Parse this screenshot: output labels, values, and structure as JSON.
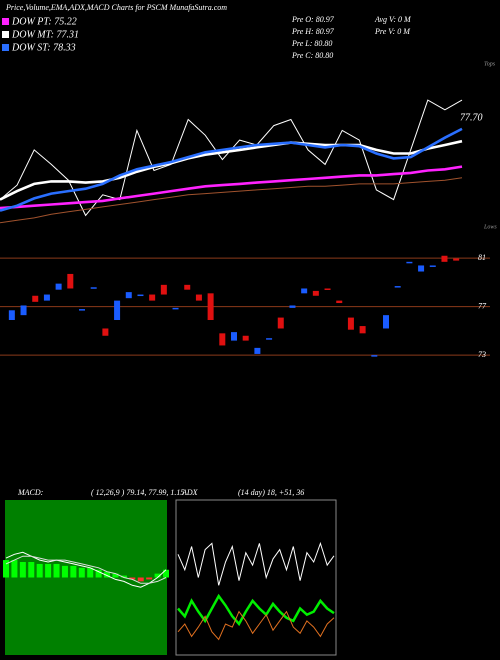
{
  "title": "Price,Volume,EMA,ADX,MACD Charts for PSCM MunafaSutra.com",
  "chart_data": [
    {
      "type": "line",
      "ylim": [
        70,
        84
      ],
      "stats": [
        "Pre  O: 80.97",
        "Pre  H: 80.97",
        "Pre  L: 80.80",
        "Pre  C: 80.80",
        "Avg V: 0  M",
        "Pre  V: 0  M"
      ],
      "annotations": [
        "77.70",
        "Tops",
        "Lows"
      ],
      "series": [
        {
          "color": "#ffffff",
          "values": [
            72.5,
            73.7,
            76.6,
            75.4,
            74.1,
            71.2,
            72.9,
            72.5,
            78.2,
            74.9,
            75.4,
            79.1,
            77.8,
            75.8,
            77.4,
            77.0,
            78.6,
            79.1,
            76.6,
            75.4,
            78.2,
            77.4,
            73.3,
            72.5,
            76.6,
            80.7,
            79.9,
            80.7
          ]
        },
        {
          "color": "#a0522d",
          "values": [
            70.6,
            70.8,
            71.0,
            71.3,
            71.5,
            71.7,
            71.9,
            72.1,
            72.3,
            72.5,
            72.7,
            72.9,
            73.0,
            73.1,
            73.2,
            73.3,
            73.4,
            73.5,
            73.6,
            73.6,
            73.7,
            73.8,
            73.8,
            73.8,
            73.9,
            74.0,
            74.1,
            74.3
          ]
        },
        {
          "name": "DOW PT: 75.22",
          "color": "#ff22ff",
          "values": [
            71.8,
            71.9,
            72.0,
            72.1,
            72.2,
            72.3,
            72.4,
            72.6,
            72.8,
            73.0,
            73.2,
            73.4,
            73.6,
            73.7,
            73.8,
            73.9,
            74.0,
            74.1,
            74.2,
            74.3,
            74.4,
            74.5,
            74.5,
            74.6,
            74.7,
            74.9,
            75.0,
            75.22
          ]
        },
        {
          "name": "DOW MT: 77.31",
          "color": "#ffffff",
          "values": [
            72.5,
            73.2,
            73.8,
            74.0,
            74.0,
            73.9,
            74.0,
            74.3,
            74.8,
            75.2,
            75.5,
            75.9,
            76.2,
            76.4,
            76.6,
            76.8,
            77.0,
            77.2,
            77.1,
            77.0,
            77.0,
            77.0,
            76.6,
            76.3,
            76.3,
            76.7,
            77.0,
            77.31
          ]
        },
        {
          "name": "DOW ST: 78.33",
          "color": "#2a6fff",
          "values": [
            71.6,
            72.0,
            72.6,
            73.0,
            73.2,
            73.4,
            73.8,
            74.5,
            75.0,
            75.3,
            75.6,
            76.0,
            76.4,
            76.6,
            76.8,
            77.0,
            77.1,
            77.2,
            77.0,
            76.8,
            77.0,
            76.9,
            76.3,
            75.9,
            76.0,
            76.8,
            77.6,
            78.33
          ]
        }
      ]
    },
    {
      "type": "candlestick",
      "ylim": [
        72.6,
        82.5
      ],
      "yticks": [
        73,
        77,
        81
      ],
      "up_color": "#1a5cff",
      "down_color": "#e01010",
      "open": [
        75.9,
        76.3,
        77.9,
        77.5,
        78.4,
        79.7,
        76.8,
        78.6,
        75.2,
        75.9,
        77.7,
        78.0,
        78.0,
        78.8,
        76.9,
        78.8,
        78.0,
        78.1,
        74.8,
        74.2,
        74.6,
        73.1,
        74.4,
        76.1,
        76.9,
        78.1,
        78.3,
        78.5,
        77.5,
        76.1,
        75.4,
        73.0,
        75.2,
        78.7,
        80.7,
        79.9,
        80.4,
        81.2,
        80.97
      ],
      "close": [
        76.7,
        77.1,
        77.4,
        78.0,
        78.9,
        78.5,
        76.8,
        78.6,
        74.6,
        77.5,
        78.2,
        78.0,
        77.5,
        78.0,
        76.9,
        78.4,
        77.5,
        75.9,
        73.8,
        74.9,
        74.2,
        73.6,
        74.4,
        75.2,
        77.1,
        78.5,
        77.9,
        78.4,
        77.3,
        75.1,
        74.8,
        73.0,
        76.3,
        78.7,
        80.7,
        80.4,
        80.4,
        80.7,
        80.8
      ]
    },
    {
      "type": "macd",
      "title": "MACD:",
      "subtitle": "( 12,26,9 ) 79.14, 77.99, 1.15",
      "ylim": [
        -4,
        4
      ],
      "background": "#008000",
      "histogram": {
        "colors": [
          "#00ff00",
          "#ff3030"
        ],
        "values": [
          0.9,
          0.9,
          0.8,
          0.8,
          0.7,
          0.7,
          0.7,
          0.6,
          0.6,
          0.5,
          0.5,
          0.4,
          0.3,
          0.2,
          0.1,
          -0.1,
          -0.2,
          -0.1,
          0.2,
          0.4
        ]
      },
      "series": [
        {
          "color": "#ffffff",
          "values": [
            1.0,
            1.2,
            1.3,
            1.1,
            0.9,
            0.8,
            0.9,
            0.8,
            0.7,
            0.6,
            0.5,
            0.3,
            0.1,
            -0.1,
            -0.2,
            -0.4,
            -0.5,
            -0.3,
            0.0,
            0.4
          ]
        },
        {
          "color": "#dddddd",
          "values": [
            0.7,
            0.9,
            1.1,
            1.1,
            1.0,
            0.9,
            0.9,
            0.9,
            0.8,
            0.7,
            0.6,
            0.5,
            0.3,
            0.2,
            0.0,
            -0.1,
            -0.3,
            -0.3,
            -0.2,
            0.0
          ]
        }
      ]
    },
    {
      "type": "adx",
      "title": "ADX",
      "subtitle": "(14 day) 18, +51, 36",
      "ylim": [
        0,
        100
      ],
      "series": [
        {
          "color": "#ffffff",
          "values": [
            65,
            55,
            70,
            50,
            68,
            72,
            45,
            60,
            70,
            48,
            66,
            58,
            72,
            50,
            62,
            68,
            55,
            70,
            48,
            66,
            60,
            72,
            58,
            64
          ]
        },
        {
          "color": "#00ee00",
          "values": [
            30,
            25,
            35,
            28,
            22,
            30,
            38,
            32,
            25,
            20,
            28,
            35,
            30,
            26,
            33,
            28,
            24,
            22,
            30,
            26,
            28,
            35,
            30,
            27
          ]
        },
        {
          "color": "#e07020",
          "values": [
            15,
            20,
            12,
            18,
            25,
            15,
            10,
            20,
            18,
            28,
            22,
            14,
            20,
            26,
            16,
            22,
            28,
            18,
            14,
            22,
            18,
            12,
            20,
            24
          ]
        }
      ]
    }
  ]
}
